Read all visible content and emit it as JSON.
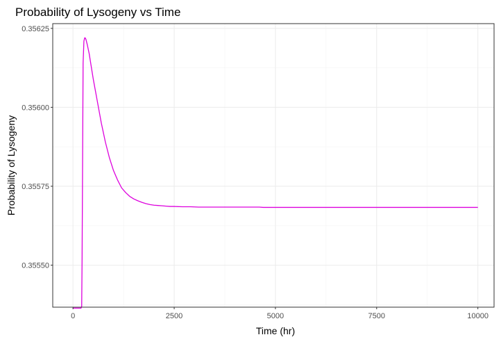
{
  "chart_data": {
    "type": "line",
    "title": "Probability of Lysogeny vs Time",
    "xlabel": "Time (hr)",
    "ylabel": "Probability of Lysogeny",
    "xlim": [
      -500,
      10400
    ],
    "ylim": [
      0.355367,
      0.356265
    ],
    "x_ticks": [
      0,
      2500,
      5000,
      7500,
      10000
    ],
    "x_tick_labels": [
      "0",
      "2500",
      "5000",
      "7500",
      "10000"
    ],
    "y_ticks": [
      0.3555,
      0.35575,
      0.356,
      0.35625
    ],
    "y_tick_labels": [
      "0.35550",
      "0.35575",
      "0.35600",
      "0.35625"
    ],
    "grid": true,
    "series": [
      {
        "color": "#dd00dd",
        "x": [
          0,
          100,
          200,
          215,
          225,
          240,
          250,
          270,
          290,
          300,
          320,
          350,
          400,
          450,
          500,
          600,
          700,
          800,
          900,
          1000,
          1100,
          1200,
          1300,
          1400,
          1500,
          1600,
          1700,
          1800,
          1900,
          2000,
          2100,
          2200,
          2300,
          2400,
          2500,
          2700,
          2900,
          3100,
          3500,
          4000,
          4600,
          4700,
          5000,
          6000,
          7000,
          8000,
          9000,
          10000
        ],
        "y": [
          0.355364,
          0.355364,
          0.355364,
          0.35537,
          0.35552,
          0.35589,
          0.35614,
          0.35621,
          0.35622,
          0.35622,
          0.356215,
          0.3562,
          0.35617,
          0.35613,
          0.35609,
          0.35602,
          0.35595,
          0.35589,
          0.35584,
          0.3558,
          0.35577,
          0.355745,
          0.35573,
          0.355718,
          0.35571,
          0.355704,
          0.355699,
          0.355695,
          0.355692,
          0.35569,
          0.355689,
          0.355688,
          0.355687,
          0.355686,
          0.355686,
          0.355685,
          0.355685,
          0.355684,
          0.355684,
          0.355684,
          0.355684,
          0.355683,
          0.355683,
          0.355683,
          0.355683,
          0.355683,
          0.355683,
          0.355683
        ]
      }
    ]
  }
}
